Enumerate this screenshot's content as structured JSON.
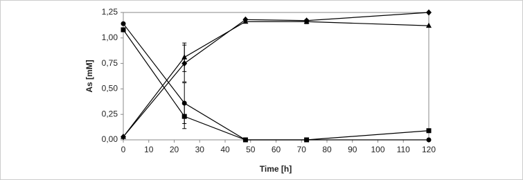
{
  "chart_data": {
    "type": "line",
    "x_label": "Time [h]",
    "y_label": "As [mM]",
    "x": [
      0,
      24,
      48,
      72,
      120
    ],
    "series": [
      {
        "marker": "circle",
        "color": "#000000",
        "values": [
          1.14,
          0.36,
          0.0,
          0.0,
          0.0
        ],
        "errors": [
          null,
          0.2,
          null,
          null,
          null
        ]
      },
      {
        "marker": "square",
        "color": "#000000",
        "values": [
          1.08,
          0.23,
          0.0,
          0.0,
          0.09
        ],
        "errors": [
          null,
          0.12,
          null,
          null,
          null
        ]
      },
      {
        "marker": "triangle",
        "color": "#000000",
        "values": [
          0.03,
          0.81,
          1.16,
          1.16,
          1.12
        ],
        "errors": [
          null,
          0.14,
          null,
          0.02,
          null
        ]
      },
      {
        "marker": "diamond",
        "color": "#000000",
        "values": [
          0.03,
          0.75,
          1.18,
          1.17,
          1.25
        ],
        "errors": [
          null,
          0.18,
          null,
          null,
          null
        ]
      }
    ],
    "xlim": [
      0,
      120
    ],
    "xticks": [
      0,
      10,
      20,
      30,
      40,
      50,
      60,
      70,
      80,
      90,
      100,
      110,
      120
    ],
    "ylim": [
      0,
      1.25
    ],
    "yticks": [
      {
        "value": 0,
        "label": "0,00"
      },
      {
        "value": 0.25,
        "label": "0,25"
      },
      {
        "value": 0.5,
        "label": "0,50"
      },
      {
        "value": 0.75,
        "label": "0,75"
      },
      {
        "value": 1.0,
        "label": "1,00"
      },
      {
        "value": 1.25,
        "label": "1,25"
      }
    ]
  }
}
